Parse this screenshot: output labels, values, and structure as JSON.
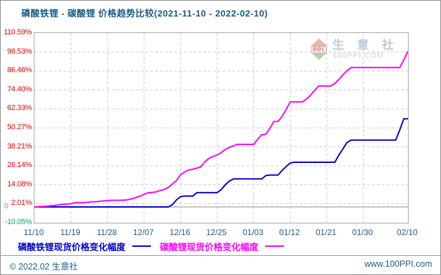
{
  "title": "磷酸铁锂 - 碳酸锂 价格趋势比较(2021-11-10 - 2022-02-10)",
  "watermark": {
    "brand": "生 意 社",
    "site": "100PPI.COM",
    "logo_text": "PPI"
  },
  "legend": [
    {
      "label": "磷酸铁锂现货价格变化幅度",
      "color": "#0000cc"
    },
    {
      "label": "碳酸锂现货价格变化幅度",
      "color": "#ff00ff"
    }
  ],
  "footer": {
    "left": "© 2022.02 生意社",
    "right": "www.100PPI.com"
  },
  "axis_colors": {
    "tick_label": "#e60000",
    "negative_tick_label": "#00a651",
    "zero_label": "#909090",
    "date_label": "#1a5c85",
    "grid": "#cccccc",
    "zero_line": "#b0b0b0",
    "plot_border": "#a8a8a8"
  },
  "chart_data": {
    "type": "line",
    "title": "磷酸铁锂 - 碳酸锂 价格趋势比较(2021-11-10 - 2022-02-10)",
    "xlabel": "",
    "ylabel": "",
    "grid": "dashed",
    "legend_position": "bottom",
    "x_tick_labels": [
      "11/10",
      "11/19",
      "11/28",
      "12/07",
      "12/16",
      "12/25",
      "01/03",
      "01/12",
      "01/21",
      "01/30",
      "02/10"
    ],
    "x_tick_day_index": [
      0,
      9,
      18,
      27,
      36,
      45,
      54,
      63,
      72,
      81,
      92
    ],
    "num_days": 92,
    "y_tick_labels": [
      "110.59%",
      "98.53%",
      "86.46%",
      "74.40%",
      "62.33%",
      "50.27%",
      "38.21%",
      "26.14%",
      "14.08%",
      "2.01%",
      "-10.05%"
    ],
    "y_tick_values": [
      110.59,
      98.53,
      86.46,
      74.4,
      62.33,
      50.27,
      38.21,
      26.14,
      14.08,
      2.01,
      -10.05
    ],
    "ylim": [
      -10.05,
      110.59
    ],
    "zero_line": 0,
    "zero_label": "0",
    "series": [
      {
        "name": "磷酸铁锂现货价格变化幅度",
        "color": "#0000cc",
        "unit": "percent_change_vs_2021-11-10",
        "values": [
          0,
          0,
          0,
          0,
          0,
          0,
          0,
          0,
          0,
          0,
          0,
          0,
          0,
          0,
          0,
          0,
          0,
          0,
          0,
          0,
          0,
          0,
          0,
          0,
          0,
          0,
          0,
          0,
          0,
          0,
          0,
          0,
          0,
          0,
          1.5,
          4.5,
          6.6,
          6.9,
          6.9,
          6.9,
          9.1,
          9.1,
          9.1,
          9.1,
          9.1,
          9.1,
          11.0,
          14.0,
          16.5,
          17.8,
          17.8,
          17.8,
          17.8,
          17.8,
          17.8,
          17.8,
          17.8,
          20.0,
          20.3,
          20.3,
          20.3,
          23.2,
          25.7,
          27.9,
          28.4,
          28.4,
          28.4,
          28.4,
          28.4,
          28.4,
          28.4,
          28.4,
          28.4,
          28.4,
          28.4,
          33.0,
          37.0,
          41.0,
          42.5,
          42.5,
          42.5,
          42.5,
          42.5,
          42.5,
          42.5,
          42.5,
          42.5,
          42.5,
          42.5,
          42.5,
          49.0,
          56.1,
          56.1
        ]
      },
      {
        "name": "碳酸锂现货价格变化幅度",
        "color": "#ff00ff",
        "unit": "percent_change_vs_2021-11-10",
        "values": [
          0,
          0.2,
          0.4,
          0.5,
          0.7,
          0.9,
          1.3,
          1.7,
          1.8,
          2.0,
          2.7,
          2.7,
          2.7,
          2.9,
          3.3,
          3.3,
          3.6,
          3.8,
          4.0,
          4.2,
          4.2,
          4.3,
          4.3,
          4.6,
          5.2,
          6.0,
          6.8,
          8.0,
          9.0,
          9.3,
          9.5,
          10.5,
          11.0,
          12.5,
          14.6,
          16.8,
          20.5,
          22.2,
          23.5,
          24.0,
          24.7,
          25.5,
          28.7,
          30.9,
          32.1,
          33.0,
          34.5,
          36.5,
          37.9,
          38.8,
          39.8,
          39.8,
          39.8,
          39.8,
          39.8,
          43.0,
          45.9,
          46.2,
          50.0,
          54.4,
          54.4,
          57.5,
          62.0,
          66.8,
          66.8,
          66.8,
          66.8,
          68.5,
          71.0,
          74.0,
          76.9,
          76.9,
          76.9,
          76.9,
          78.5,
          81.0,
          84.0,
          86.5,
          88.6,
          88.6,
          88.6,
          88.6,
          88.6,
          88.6,
          88.6,
          88.6,
          88.6,
          88.6,
          88.6,
          88.6,
          88.6,
          93.5,
          99.0
        ]
      }
    ]
  }
}
